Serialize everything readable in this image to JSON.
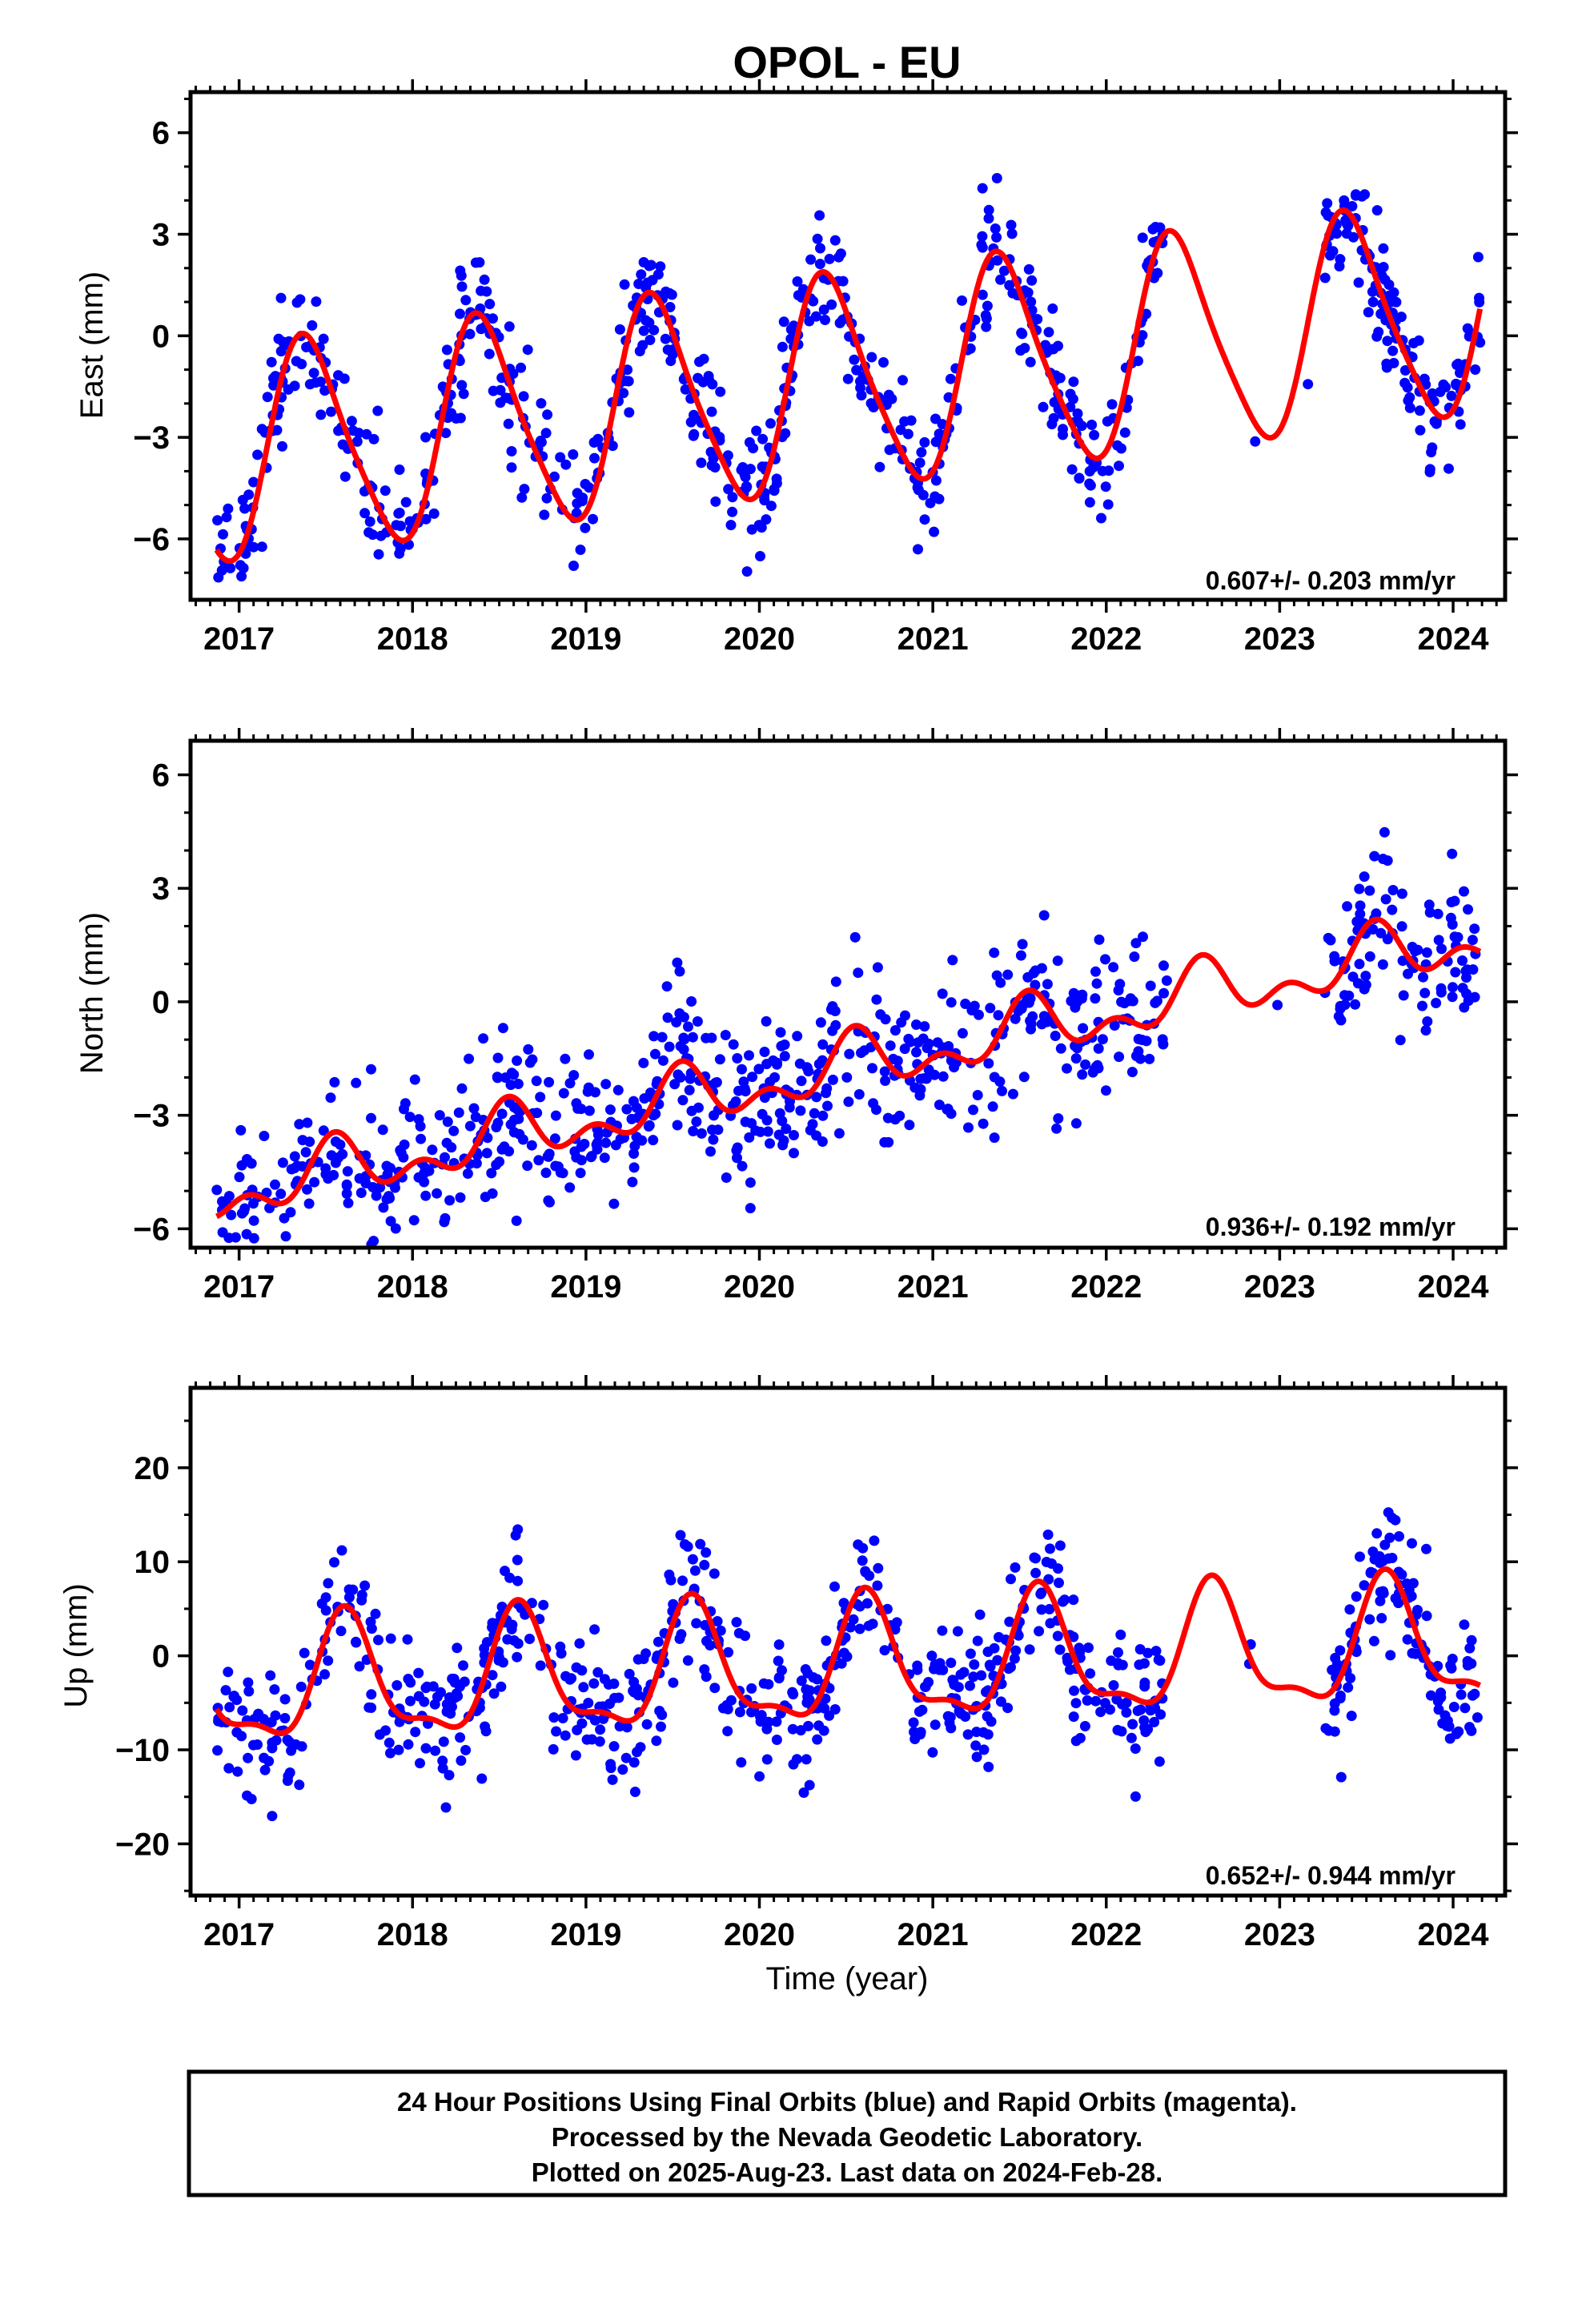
{
  "title": "OPOL - EU",
  "xlabel": "Time (year)",
  "x_tick_labels": [
    "2017",
    "2018",
    "2019",
    "2020",
    "2021",
    "2022",
    "2023",
    "2024"
  ],
  "caption": {
    "line1": "24 Hour Positions Using Final Orbits (blue) and Rapid Orbits (magenta).",
    "line2": "Processed by the Nevada Geodetic Laboratory.",
    "line3": "Plotted on 2025-Aug-23. Last data on 2024-Feb-28."
  },
  "colors": {
    "points": "#0000ff",
    "model": "#ff0000",
    "axes": "#000000"
  },
  "chart_data": [
    {
      "type": "scatter",
      "ylabel": "East (mm)",
      "rate_text": "0.607+/- 0.203 mm/yr",
      "xlim": [
        2016.72,
        2024.3
      ],
      "ylim": [
        -7.8,
        7.2
      ],
      "y_ticks": [
        -6,
        -3,
        0,
        3,
        6
      ],
      "y_tick_labels": [
        "−6",
        "−3",
        "0",
        "3",
        "6"
      ],
      "model": {
        "offset": -1.7,
        "trend": 0.607,
        "annual_amp": 3.1,
        "annual_peak": 0.4,
        "semi_amp": 0.5,
        "semi_peak": 0.3
      },
      "noise_sd": 0.9,
      "point_count": 850
    },
    {
      "type": "scatter",
      "ylabel": "North (mm)",
      "rate_text": "0.936+/- 0.192 mm/yr",
      "xlim": [
        2016.72,
        2024.3
      ],
      "ylim": [
        -6.5,
        6.9
      ],
      "y_ticks": [
        -6,
        -3,
        0,
        3,
        6
      ],
      "y_tick_labels": [
        "−6",
        "−3",
        "0",
        "3",
        "6"
      ],
      "model": {
        "offset": -2.2,
        "trend": 0.936,
        "annual_amp": 0.6,
        "annual_peak": 0.55,
        "semi_amp": 0.45,
        "semi_peak": 0.05
      },
      "noise_sd": 0.95,
      "point_count": 850
    },
    {
      "type": "scatter",
      "ylabel": "Up (mm)",
      "rate_text": "0.652+/- 0.944 mm/yr",
      "xlim": [
        2016.72,
        2024.3
      ],
      "ylim": [
        -25.5,
        28.5
      ],
      "y_ticks": [
        -20,
        -10,
        0,
        10,
        20
      ],
      "y_tick_labels": [
        "−20",
        "−10",
        "0",
        "10",
        "20"
      ],
      "model": {
        "offset": -1.5,
        "trend": 0.652,
        "annual_amp": 6.2,
        "annual_peak": 0.62,
        "semi_amp": 2.2,
        "semi_peak": 0.1
      },
      "noise_sd": 3.5,
      "point_count": 850
    }
  ]
}
